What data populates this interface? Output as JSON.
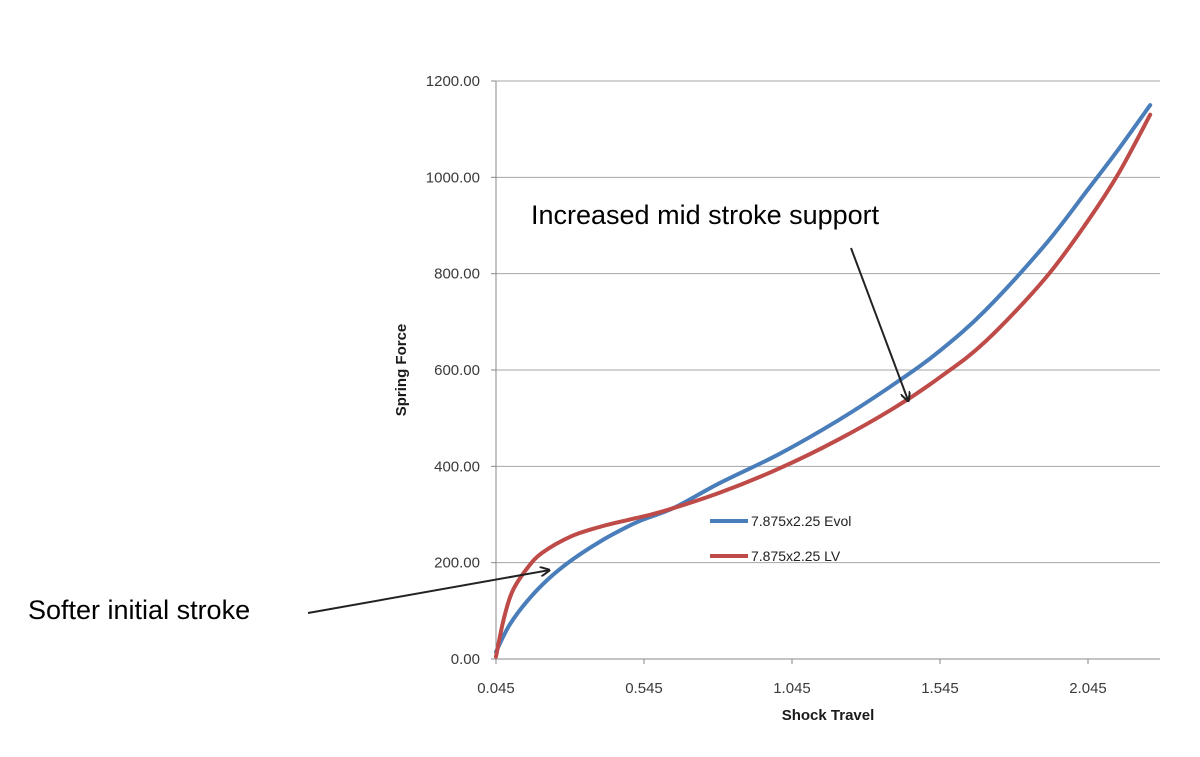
{
  "chart_data": {
    "type": "line",
    "xlabel": "Shock Travel",
    "ylabel": "Spring Force",
    "xlim": [
      0.045,
      2.27
    ],
    "ylim": [
      0,
      1200
    ],
    "y_ticks": [
      0,
      200,
      400,
      600,
      800,
      1000,
      1200
    ],
    "y_tick_labels": [
      "0.00",
      "200.00",
      "400.00",
      "600.00",
      "800.00",
      "1000.00",
      "1200.00"
    ],
    "x_ticks": [
      0.045,
      0.545,
      1.045,
      1.545,
      2.045
    ],
    "x_tick_labels": [
      "0.045",
      "0.545",
      "1.045",
      "1.545",
      "2.045"
    ],
    "grid": "horizontal",
    "legend_position": "center",
    "series": [
      {
        "name": "7.875x2.25 Evol",
        "color": "#4a7ebb",
        "x": [
          0.045,
          0.09,
          0.15,
          0.22,
          0.3,
          0.4,
          0.5,
          0.545,
          0.65,
          0.8,
          1.0,
          1.2,
          1.4,
          1.545,
          1.7,
          1.9,
          2.045,
          2.15,
          2.255
        ],
        "y": [
          15,
          70,
          120,
          165,
          205,
          245,
          278,
          290,
          315,
          365,
          425,
          495,
          575,
          640,
          725,
          860,
          975,
          1060,
          1150
        ]
      },
      {
        "name": "7.875x2.25 LV",
        "color": "#be4b48",
        "x": [
          0.045,
          0.07,
          0.1,
          0.15,
          0.2,
          0.3,
          0.4,
          0.5,
          0.6,
          0.8,
          1.0,
          1.2,
          1.4,
          1.545,
          1.7,
          1.9,
          2.045,
          2.15,
          2.255
        ],
        "y": [
          5,
          80,
          140,
          188,
          220,
          255,
          275,
          290,
          305,
          345,
          395,
          455,
          525,
          585,
          660,
          790,
          910,
          1010,
          1130
        ]
      }
    ],
    "annotations": [
      {
        "text": "Increased mid stroke support",
        "target_x": 1.43,
        "target_y": 600
      },
      {
        "text": "Softer initial stroke",
        "target_x": 0.235,
        "target_y": 180
      }
    ]
  }
}
